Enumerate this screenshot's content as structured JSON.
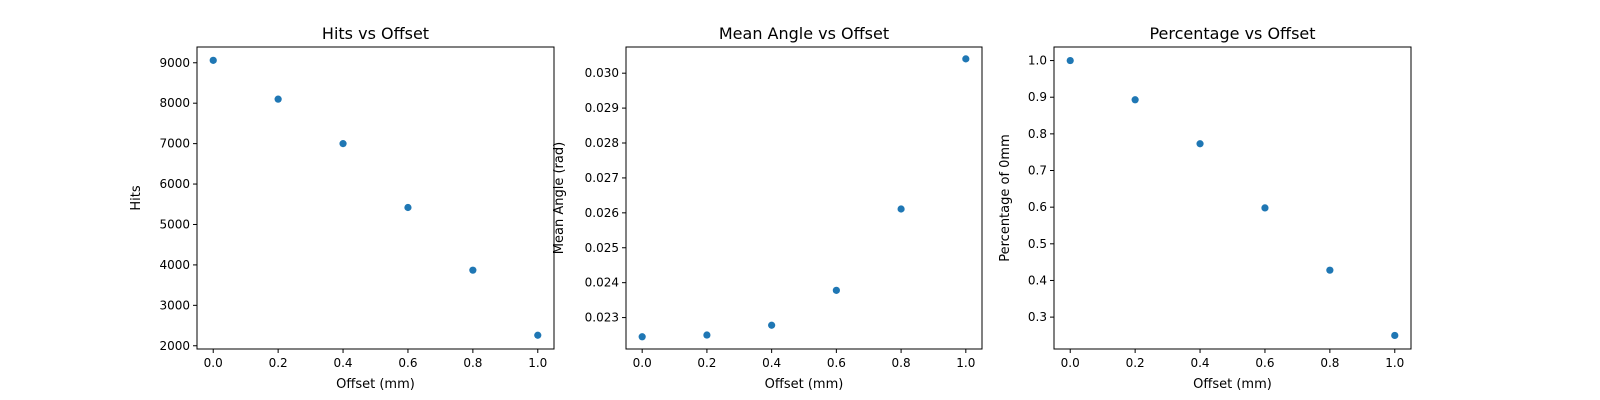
{
  "chart_data": [
    {
      "type": "scatter",
      "title": "Hits vs Offset",
      "xlabel": "Offset (mm)",
      "ylabel": "Hits",
      "xlim": [
        -0.05,
        1.05
      ],
      "ylim": [
        1920,
        9390
      ],
      "xticks": [
        0.0,
        0.2,
        0.4,
        0.6,
        0.8,
        1.0
      ],
      "xtick_labels": [
        "0.0",
        "0.2",
        "0.4",
        "0.6",
        "0.8",
        "1.0"
      ],
      "yticks": [
        2000,
        3000,
        4000,
        5000,
        6000,
        7000,
        8000,
        9000
      ],
      "ytick_labels": [
        "2000",
        "3000",
        "4000",
        "5000",
        "6000",
        "7000",
        "8000",
        "9000"
      ],
      "grid": false,
      "series": [
        {
          "x": [
            0.0,
            0.2,
            0.4,
            0.6,
            0.8,
            1.0
          ],
          "y": [
            9060,
            8100,
            7000,
            5420,
            3870,
            2260
          ]
        }
      ]
    },
    {
      "type": "scatter",
      "title": "Mean Angle vs Offset",
      "xlabel": "Offset (mm)",
      "ylabel": "Mean Angle (rad)",
      "xlim": [
        -0.05,
        1.05
      ],
      "ylim": [
        0.0221,
        0.03075
      ],
      "xticks": [
        0.0,
        0.2,
        0.4,
        0.6,
        0.8,
        1.0
      ],
      "xtick_labels": [
        "0.0",
        "0.2",
        "0.4",
        "0.6",
        "0.8",
        "1.0"
      ],
      "yticks": [
        0.023,
        0.024,
        0.025,
        0.026,
        0.027,
        0.028,
        0.029,
        0.03
      ],
      "ytick_labels": [
        "0.023",
        "0.024",
        "0.025",
        "0.026",
        "0.027",
        "0.028",
        "0.029",
        "0.030"
      ],
      "grid": false,
      "series": [
        {
          "x": [
            0.0,
            0.2,
            0.4,
            0.6,
            0.8,
            1.0
          ],
          "y": [
            0.02245,
            0.0225,
            0.02278,
            0.02378,
            0.02611,
            0.03041
          ]
        }
      ]
    },
    {
      "type": "scatter",
      "title": "Percentage vs Offset",
      "xlabel": "Offset (mm)",
      "ylabel": "Percentage of 0mm",
      "xlim": [
        -0.05,
        1.05
      ],
      "ylim": [
        0.213,
        1.037
      ],
      "xticks": [
        0.0,
        0.2,
        0.4,
        0.6,
        0.8,
        1.0
      ],
      "xtick_labels": [
        "0.0",
        "0.2",
        "0.4",
        "0.6",
        "0.8",
        "1.0"
      ],
      "yticks": [
        0.3,
        0.4,
        0.5,
        0.6,
        0.7,
        0.8,
        0.9,
        1.0
      ],
      "ytick_labels": [
        "0.3",
        "0.4",
        "0.5",
        "0.6",
        "0.7",
        "0.8",
        "0.9",
        "1.0"
      ],
      "grid": false,
      "series": [
        {
          "x": [
            0.0,
            0.2,
            0.4,
            0.6,
            0.8,
            1.0
          ],
          "y": [
            1.0,
            0.893,
            0.773,
            0.598,
            0.428,
            0.25
          ]
        }
      ]
    }
  ],
  "colors": {
    "marker": "#1f77b4",
    "axes": "#000000",
    "background": "#ffffff"
  }
}
